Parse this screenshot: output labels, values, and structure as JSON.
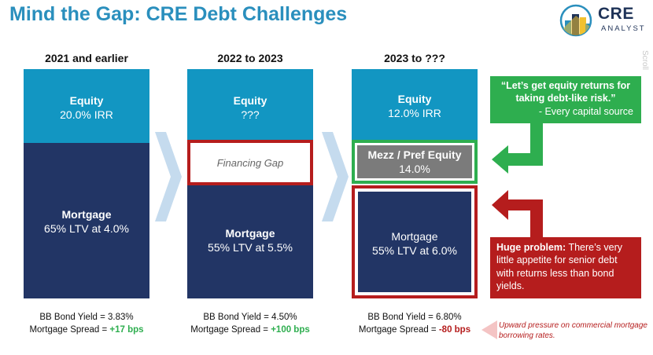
{
  "title": "Mind the Gap: CRE Debt Challenges",
  "logo": {
    "word": "CRE",
    "sub": "ANALYST"
  },
  "scroll_hint": "Scroll",
  "columns": [
    {
      "header": "2021 and earlier",
      "equity": {
        "label": "Equity",
        "value": "20.0% IRR"
      },
      "mortgage": {
        "label": "Mortgage",
        "value": "65% LTV at 4.0%"
      },
      "bond_yield": "BB Bond Yield = 3.83%",
      "spread_label": "Mortgage Spread = ",
      "spread_value": "+17 bps"
    },
    {
      "header": "2022 to 2023",
      "equity": {
        "label": "Equity",
        "value": "???"
      },
      "gap": "Financing Gap",
      "mortgage": {
        "label": "Mortgage",
        "value": "55% LTV at 5.5%"
      },
      "bond_yield": "BB Bond Yield = 4.50%",
      "spread_label": "Mortgage Spread = ",
      "spread_value": "+100 bps"
    },
    {
      "header": "2023 to ???",
      "equity": {
        "label": "Equity",
        "value": "12.0% IRR"
      },
      "mezz": {
        "label": "Mezz / Pref Equity",
        "value": "14.0%"
      },
      "mortgage": {
        "label": "Mortgage",
        "value": "55% LTV at 6.0%"
      },
      "bond_yield": "BB Bond Yield = 6.80%",
      "spread_label": "Mortgage Spread = ",
      "spread_value": "-80 bps"
    }
  ],
  "quote": {
    "text": "“Let’s get equity returns for taking debt-like risk.”",
    "attribution": "- Every capital source"
  },
  "problem": {
    "bold": "Huge problem:",
    "text": " There’s very little appetite for senior debt with returns less than bond yields."
  },
  "pressure_note": "Upward pressure on commercial mortgage borrowing rates.",
  "colors": {
    "title": "#2a8fbd",
    "equity": "#1296c2",
    "mortgage": "#223565",
    "mezz": "#7b7b7b",
    "green": "#2eae4f",
    "red": "#b51d1d",
    "chevron": "#c5dbee"
  }
}
